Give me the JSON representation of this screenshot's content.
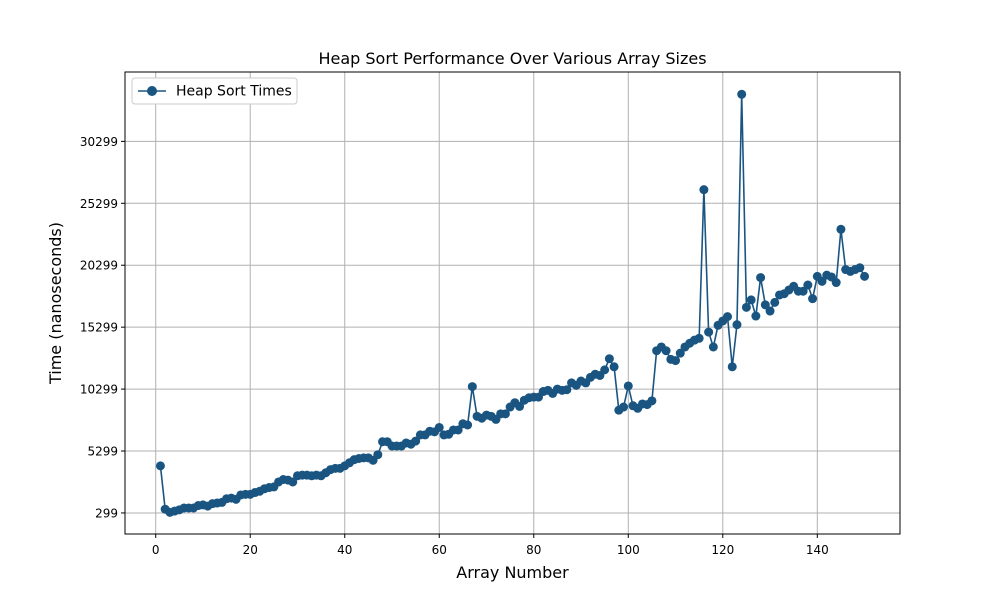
{
  "chart_data": {
    "type": "line",
    "title": "Heap Sort Performance Over Various Array Sizes",
    "xlabel": "Array Number",
    "ylabel": "Time (nanoseconds)",
    "xlim": [
      -6.5,
      157.5
    ],
    "ylim": [
      -1400,
      35900
    ],
    "x_ticks": [
      0,
      20,
      40,
      60,
      80,
      100,
      120,
      140
    ],
    "y_ticks": [
      299,
      5299,
      10299,
      15299,
      20299,
      25299,
      30299
    ],
    "grid": true,
    "legend_position": "top-left",
    "series": [
      {
        "name": "Heap Sort Times",
        "color": "#1a5582",
        "marker": "circle",
        "x": [
          1,
          2,
          3,
          4,
          5,
          6,
          7,
          8,
          9,
          10,
          11,
          12,
          13,
          14,
          15,
          16,
          17,
          18,
          19,
          20,
          21,
          22,
          23,
          24,
          25,
          26,
          27,
          28,
          29,
          30,
          31,
          32,
          33,
          34,
          35,
          36,
          37,
          38,
          39,
          40,
          41,
          42,
          43,
          44,
          45,
          46,
          47,
          48,
          49,
          50,
          51,
          52,
          53,
          54,
          55,
          56,
          57,
          58,
          59,
          60,
          61,
          62,
          63,
          64,
          65,
          66,
          67,
          68,
          69,
          70,
          71,
          72,
          73,
          74,
          75,
          76,
          77,
          78,
          79,
          80,
          81,
          82,
          83,
          84,
          85,
          86,
          87,
          88,
          89,
          90,
          91,
          92,
          93,
          94,
          95,
          96,
          97,
          98,
          99,
          100,
          101,
          102,
          103,
          104,
          105,
          106,
          107,
          108,
          109,
          110,
          111,
          112,
          113,
          114,
          115,
          116,
          117,
          118,
          119,
          120,
          121,
          122,
          123,
          124,
          125,
          126,
          127,
          128,
          129,
          130,
          131,
          132,
          133,
          134,
          135,
          136,
          137,
          138,
          139,
          140,
          141,
          142,
          143,
          144,
          145,
          146,
          147,
          148,
          149,
          150
        ],
        "y": [
          4100,
          600,
          350,
          450,
          550,
          700,
          700,
          700,
          900,
          950,
          850,
          1050,
          1100,
          1150,
          1450,
          1500,
          1400,
          1750,
          1800,
          1800,
          1950,
          2050,
          2250,
          2350,
          2400,
          2800,
          3000,
          2950,
          2800,
          3300,
          3350,
          3350,
          3300,
          3350,
          3300,
          3550,
          3800,
          3900,
          3900,
          4100,
          4350,
          4600,
          4700,
          4750,
          4750,
          4550,
          5000,
          6050,
          6050,
          5700,
          5700,
          5700,
          5950,
          5850,
          6100,
          6600,
          6600,
          6900,
          6850,
          7200,
          6600,
          6650,
          7000,
          7000,
          7500,
          7400,
          10500,
          8100,
          7950,
          8200,
          8100,
          7850,
          8300,
          8300,
          8850,
          9200,
          8900,
          9400,
          9600,
          9650,
          9650,
          10100,
          10200,
          9950,
          10300,
          10200,
          10250,
          10800,
          10600,
          10950,
          10800,
          11250,
          11500,
          11400,
          11850,
          12750,
          12100,
          8600,
          8850,
          10550,
          8950,
          8750,
          9100,
          9050,
          9350,
          13400,
          13700,
          13400,
          12700,
          12600,
          13200,
          13700,
          14000,
          14250,
          14400,
          26400,
          14900,
          13700,
          15450,
          15800,
          16150,
          12100,
          15500,
          34100,
          16900,
          17500,
          16200,
          19300,
          17100,
          16600,
          17300,
          17900,
          18000,
          18300,
          18600,
          18200,
          18200,
          18700,
          17600,
          19400,
          19000,
          19500,
          19350,
          18900,
          23200,
          19950,
          19800,
          19950,
          20100,
          19400
        ]
      }
    ]
  }
}
